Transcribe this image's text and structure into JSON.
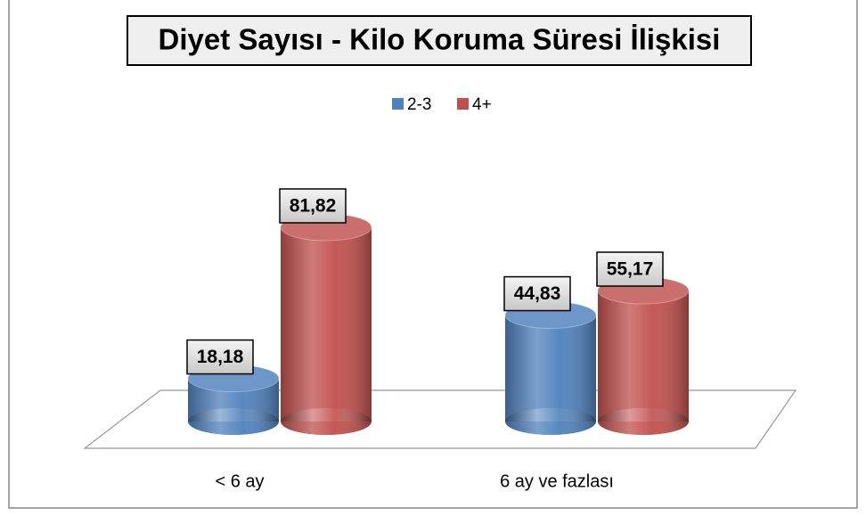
{
  "chart_data": {
    "type": "bar3d",
    "title": "Diyet Sayısı - Kilo Koruma Süresi İlişkisi",
    "categories": [
      "< 6 ay",
      "6 ay ve fazlası"
    ],
    "series": [
      {
        "name": "2-3",
        "color": "#4f81bd",
        "values": [
          18.18,
          44.83
        ],
        "value_labels": [
          "18,18",
          "44,83"
        ]
      },
      {
        "name": "4+",
        "color": "#c0504d",
        "values": [
          81.82,
          55.17
        ],
        "value_labels": [
          "81,82",
          "55,17"
        ]
      }
    ]
  }
}
